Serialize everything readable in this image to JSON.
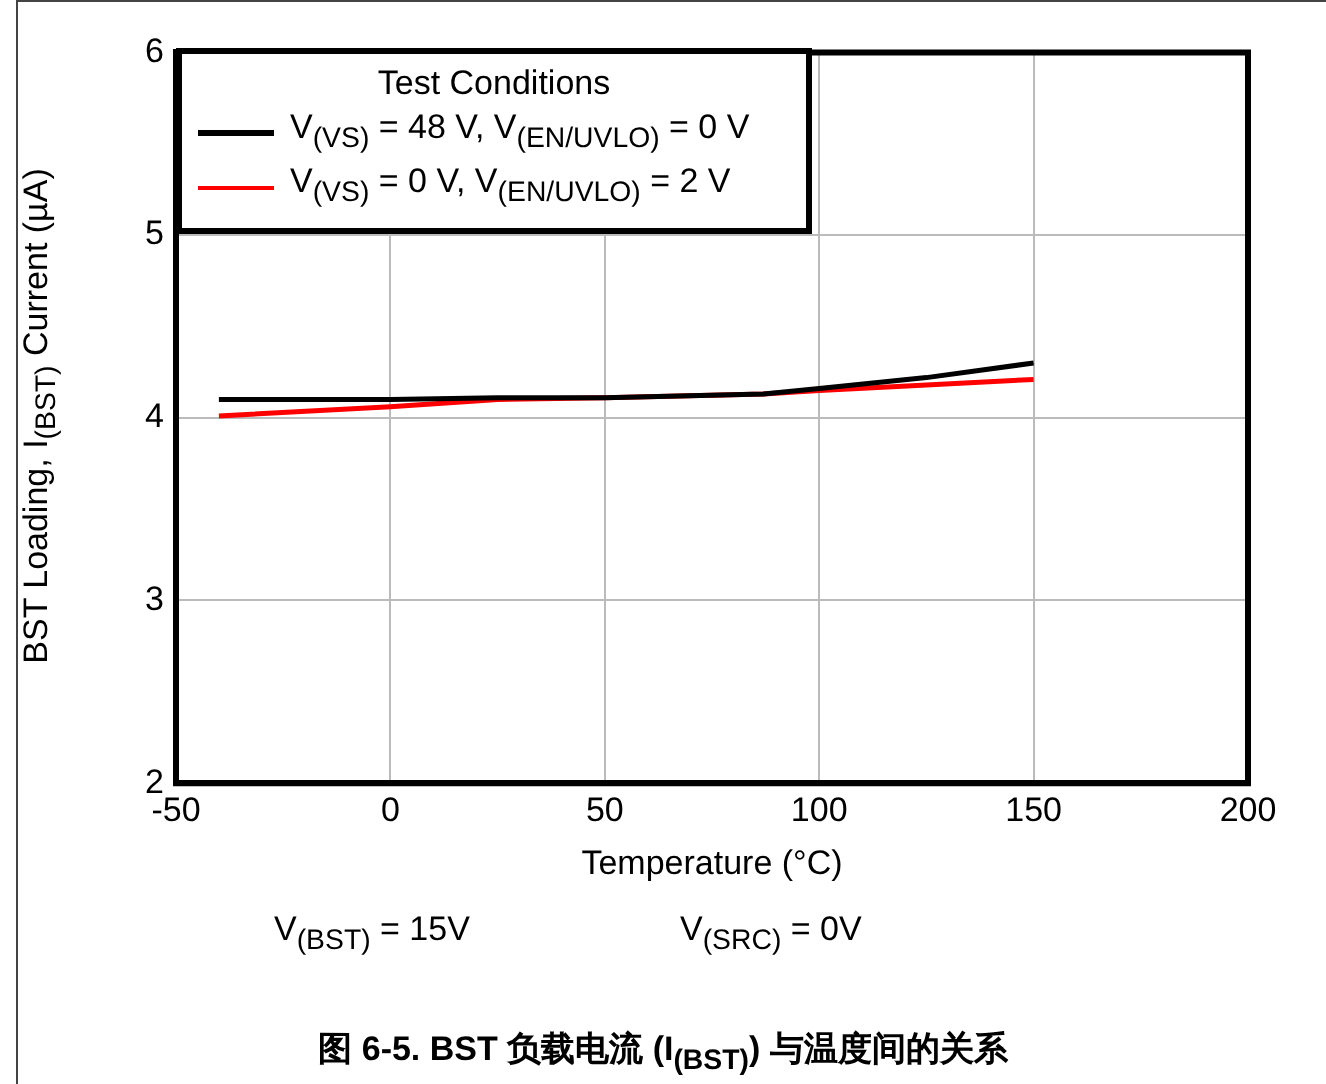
{
  "chart_data": {
    "type": "line",
    "title": "图 6-5. BST 负载电流 (I$_{(BST)}$) 与温度间的关系",
    "xlabel": "Temperature (°C)",
    "ylabel": "BST Loading, I$_{(BST)}$ Current (µA)",
    "legend_title": "Test Conditions",
    "annotations": [
      "V$_{(BST)}$ = 15V",
      "V$_{(SRC)}$ = 0V"
    ],
    "series": [
      {
        "name": "V$_{(VS)}$ = 48 V, V$_{(EN/UVLO)}$ = 0 V",
        "color": "#000000",
        "x": [
          -40,
          0,
          25,
          50,
          87,
          100,
          125,
          150
        ],
        "values": [
          4.1,
          4.1,
          4.11,
          4.11,
          4.13,
          4.16,
          4.22,
          4.3
        ]
      },
      {
        "name": "V$_{(VS)}$ = 0 V, V$_{(EN/UVLO)}$ = 2 V",
        "color": "#ff0000",
        "x": [
          -40,
          0,
          25,
          50,
          87,
          100,
          125,
          150
        ],
        "values": [
          4.01,
          4.06,
          4.1,
          4.11,
          4.13,
          4.15,
          4.18,
          4.21
        ]
      }
    ],
    "xlim": [
      -50,
      200
    ],
    "xticks": [
      -50,
      0,
      50,
      100,
      150,
      200
    ],
    "ylim": [
      2,
      6
    ],
    "yticks": [
      2,
      3,
      4,
      5,
      6
    ],
    "grid": true,
    "legend": "top left",
    "marker": "none",
    "line_style": "solid"
  }
}
